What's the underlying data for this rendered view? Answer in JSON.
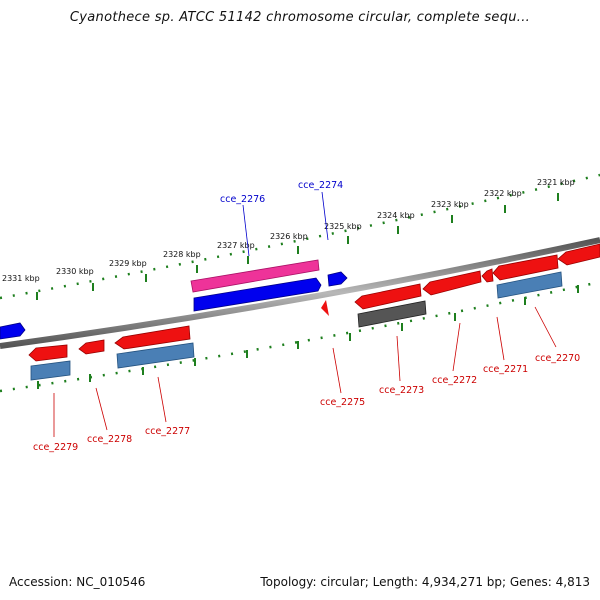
{
  "title": "Cyanothece sp. ATCC 51142 chromosome circular, complete sequ...",
  "footer": {
    "accession": "Accession: NC_010546",
    "summary": "Topology: circular; Length: 4,934,271 bp; Genes: 4,813"
  },
  "colors": {
    "background": "#ffffff",
    "backbone": "#8a8a8a",
    "tick_green": "#1e7f1e",
    "gene_red": "#ee1111",
    "gene_pink": "#ee3399",
    "gene_blue": "#0000ee",
    "gene_steelblue": "#4a7fb5",
    "gene_gray": "#555555",
    "label_red": "#cc0000",
    "label_blue": "#0000cc"
  },
  "scale_labels": [
    "2331 kbp",
    "2330 kbp",
    "2329 kbp",
    "2328 kbp",
    "2327 kbp",
    "2326 kbp",
    "2325 kbp",
    "2324 kbp",
    "2323 kbp",
    "2322 kbp",
    "2321 kbp"
  ],
  "gene_labels": [
    {
      "name": "cce_2276",
      "color": "blue"
    },
    {
      "name": "cce_2274",
      "color": "blue"
    },
    {
      "name": "cce_2279",
      "color": "red"
    },
    {
      "name": "cce_2278",
      "color": "red"
    },
    {
      "name": "cce_2277",
      "color": "red"
    },
    {
      "name": "cce_2275",
      "color": "red"
    },
    {
      "name": "cce_2273",
      "color": "red"
    },
    {
      "name": "cce_2272",
      "color": "red"
    },
    {
      "name": "cce_2271",
      "color": "red"
    },
    {
      "name": "cce_2270",
      "color": "red"
    }
  ]
}
